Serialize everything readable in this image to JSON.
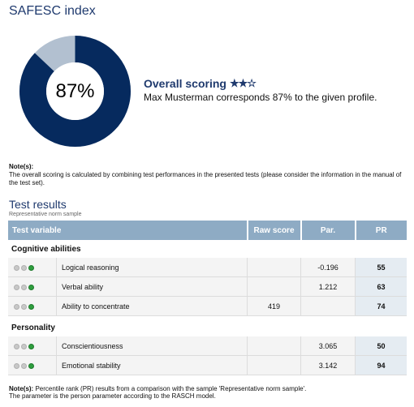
{
  "page": {
    "title": "SAFESC index"
  },
  "overall": {
    "percent": 87,
    "percent_label": "87%",
    "heading": "Overall scoring",
    "stars_filled": 2,
    "stars_total": 3,
    "description": "Max Musterman corresponds 87% to the given profile.",
    "colors": {
      "filled": "#062a5e",
      "empty": "#b2c0d0"
    }
  },
  "note1": {
    "label": "Note(s):",
    "text": "The overall scoring is calculated by combining test performances in the presented tests (please consider the information in the manual of the test set)."
  },
  "test_results": {
    "title": "Test results",
    "subtitle": "Representative norm sample",
    "columns": [
      "Test variable",
      "Raw score",
      "Par.",
      "PR"
    ],
    "sections": [
      {
        "name": "Cognitive abilities",
        "rows": [
          {
            "name": "Logical reasoning",
            "raw": "",
            "par": "-0.196",
            "pr": "55"
          },
          {
            "name": "Verbal ability",
            "raw": "",
            "par": "1.212",
            "pr": "63"
          },
          {
            "name": "Ability to concentrate",
            "raw": "419",
            "par": "",
            "pr": "74"
          }
        ]
      },
      {
        "name": "Personality",
        "rows": [
          {
            "name": "Conscientiousness",
            "raw": "",
            "par": "3.065",
            "pr": "50"
          },
          {
            "name": "Emotional stability",
            "raw": "",
            "par": "3.142",
            "pr": "94"
          }
        ]
      }
    ]
  },
  "note2": {
    "label": "Note(s):",
    "line1": "Percentile rank (PR) results from a comparison with the sample 'Representative norm sample'.",
    "line2": "The parameter is the person parameter according to the RASCH model."
  }
}
